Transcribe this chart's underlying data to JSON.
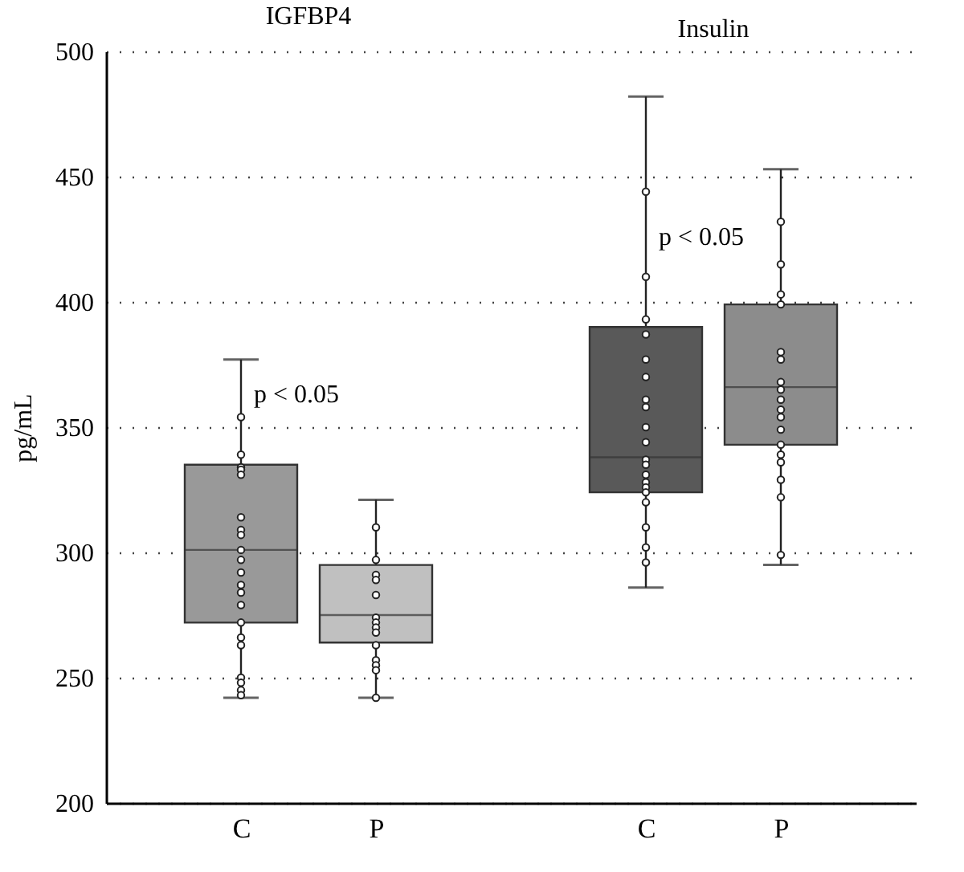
{
  "chart_data": [
    {
      "type": "box",
      "title": "IGFBP4",
      "ylabel": "pg/mL",
      "categories": [
        "C",
        "P"
      ],
      "colors": [
        "#999999",
        "#c0c0c0"
      ],
      "ylim": [
        200,
        500
      ],
      "yticks": [
        200,
        250,
        300,
        350,
        400,
        450,
        500
      ],
      "grid": "y",
      "boxes": [
        {
          "low": 242,
          "q1": 272,
          "median": 301,
          "q3": 335,
          "high": 377
        },
        {
          "low": 242,
          "q1": 264,
          "median": 275,
          "q3": 295,
          "high": 321
        }
      ],
      "series": [
        {
          "type": "scatter",
          "color": "#ffffff",
          "marker": "circle",
          "x": [
            "C",
            "C",
            "C",
            "C",
            "C",
            "C",
            "C",
            "C",
            "C",
            "C",
            "C",
            "C",
            "C",
            "C",
            "C",
            "C",
            "C",
            "C",
            "C",
            "C",
            "C"
          ],
          "values": [
            354,
            339,
            334,
            333,
            331,
            314,
            309,
            307,
            301,
            297,
            292,
            287,
            284,
            279,
            272,
            266,
            263,
            250,
            248,
            245,
            243
          ]
        },
        {
          "type": "scatter",
          "color": "#ffffff",
          "marker": "circle",
          "x": [
            "P",
            "P",
            "P",
            "P",
            "P",
            "P",
            "P",
            "P",
            "P",
            "P",
            "P",
            "P",
            "P",
            "P"
          ],
          "values": [
            310,
            297,
            291,
            289,
            283,
            274,
            272,
            270,
            268,
            263,
            257,
            255,
            253,
            242
          ]
        }
      ],
      "annotations": [
        {
          "text": "p < 0.05",
          "x": "C",
          "y": 363
        }
      ]
    },
    {
      "type": "box",
      "title": "Insulin",
      "categories": [
        "C",
        "P"
      ],
      "colors": [
        "#595959",
        "#8c8c8c"
      ],
      "ylim": [
        200,
        500
      ],
      "yticks": [
        200,
        250,
        300,
        350,
        400,
        450,
        500
      ],
      "grid": "y",
      "tick_labels": "x",
      "boxes": [
        {
          "low": 286,
          "q1": 324,
          "median": 338,
          "q3": 390,
          "high": 482
        },
        {
          "low": 295,
          "q1": 343,
          "median": 366,
          "q3": 399,
          "high": 453
        }
      ],
      "series": [
        {
          "type": "scatter",
          "color": "#ffffff",
          "marker": "circle",
          "x": [
            "C",
            "C",
            "C",
            "C",
            "C",
            "C",
            "C",
            "C",
            "C",
            "C",
            "C",
            "C",
            "C",
            "C",
            "C",
            "C",
            "C",
            "C",
            "C",
            "C"
          ],
          "values": [
            444,
            410,
            393,
            387,
            377,
            370,
            361,
            358,
            350,
            344,
            337,
            335,
            331,
            328,
            326,
            324,
            320,
            310,
            302,
            296
          ]
        },
        {
          "type": "scatter",
          "color": "#ffffff",
          "marker": "circle",
          "x": [
            "P",
            "P",
            "P",
            "P",
            "P",
            "P",
            "P",
            "P",
            "P",
            "P",
            "P",
            "P",
            "P",
            "P",
            "P",
            "P",
            "P",
            "P"
          ],
          "values": [
            432,
            415,
            403,
            399,
            380,
            377,
            368,
            365,
            361,
            357,
            354,
            349,
            343,
            339,
            336,
            329,
            322,
            299
          ]
        }
      ],
      "annotations": [
        {
          "text": "p < 0.05",
          "x": "C",
          "y": 426
        }
      ]
    }
  ]
}
